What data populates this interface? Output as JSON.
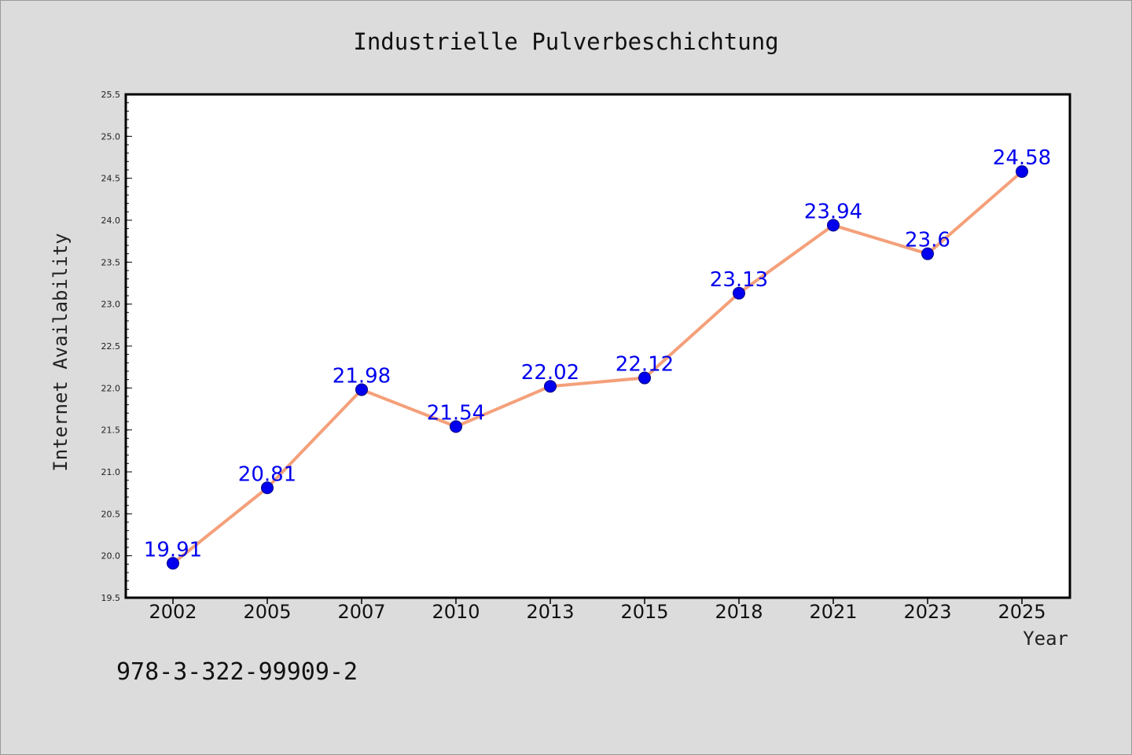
{
  "chart_data": {
    "type": "line",
    "title": "Industrielle Pulverbeschichtung",
    "xlabel": "Year",
    "ylabel": "Internet Availability",
    "categories": [
      "2002",
      "2005",
      "2007",
      "2010",
      "2013",
      "2015",
      "2018",
      "2021",
      "2023",
      "2025"
    ],
    "series": [
      {
        "values": [
          19.91,
          20.81,
          21.98,
          21.54,
          22.02,
          22.12,
          23.13,
          23.94,
          23.6,
          24.58
        ],
        "data_labels": [
          "19.91",
          "20.81",
          "21.98",
          "21.54",
          "22.02",
          "22.12",
          "23.13",
          "23.94",
          "23.6",
          "24.58"
        ],
        "line_color": "#f4a07a",
        "marker_color": "#0000ee"
      }
    ],
    "ylim": [
      19.5,
      25.5
    ],
    "yticks": [
      "19.5",
      "20.0",
      "20.5",
      "21.0",
      "21.5",
      "22.0",
      "22.5",
      "23.0",
      "23.5",
      "24.0",
      "24.5",
      "25.0",
      "25.5"
    ],
    "ytick_values": [
      19.5,
      20.0,
      20.5,
      21.0,
      21.5,
      22.0,
      22.5,
      23.0,
      23.5,
      24.0,
      24.5,
      25.0,
      25.5
    ],
    "grid": false,
    "legend": "none"
  },
  "footer_text": "978-3-322-99909-2"
}
